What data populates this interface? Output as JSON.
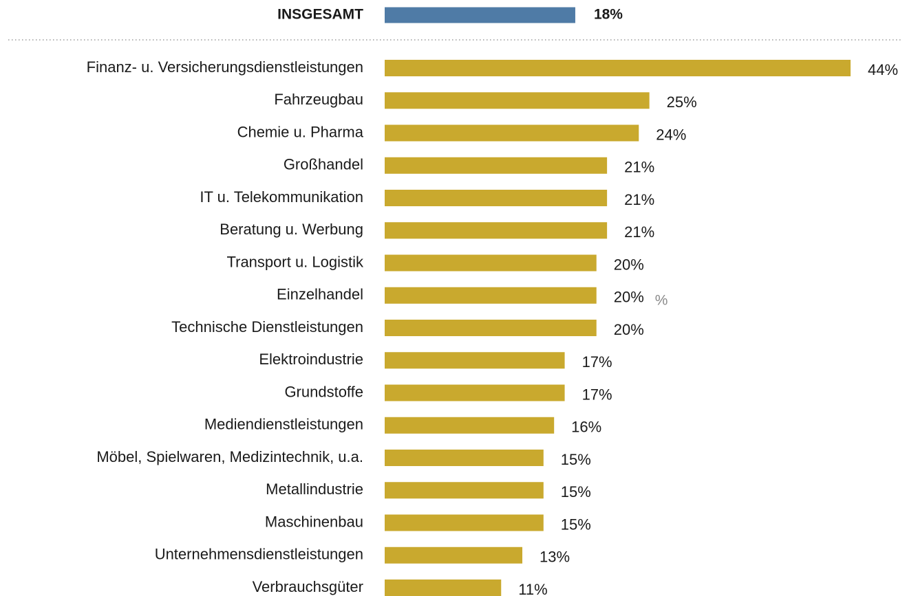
{
  "chart_data": {
    "type": "bar",
    "orientation": "horizontal",
    "total": {
      "label": "INSGESAMT",
      "value": 18,
      "value_label": "18%",
      "color": "#4f7ba6"
    },
    "categories": [
      "Finanz- u. Versicherungsdienstleistungen",
      "Fahrzeugbau",
      "Chemie u. Pharma ",
      "Großhandel",
      "IT u. Telekommunikation",
      "Beratung u. Werbung",
      "Transport u. Logistik",
      "Einzelhandel",
      "Technische Dienstleistungen",
      "Elektroindustrie",
      "Grundstoffe",
      "Mediendienstleistungen",
      "Möbel, Spielwaren, Medizintechnik, u.a.",
      "Metallindustrie",
      "Maschinenbau",
      "Unternehmensdienstleistungen",
      "Verbrauchsgüter"
    ],
    "values": [
      44,
      25,
      24,
      21,
      21,
      21,
      20,
      20,
      20,
      17,
      17,
      16,
      15,
      15,
      15,
      13,
      11
    ],
    "value_labels": [
      "44%",
      "25%",
      "24%",
      "21%",
      "21%",
      "21%",
      "20%",
      "20%",
      "20%",
      "17%",
      "17%",
      "16%",
      "15%",
      "15%",
      "15%",
      "13%",
      "11%"
    ],
    "color": "#c9a92e",
    "xlim": [
      0,
      44
    ],
    "annotation": "%"
  }
}
